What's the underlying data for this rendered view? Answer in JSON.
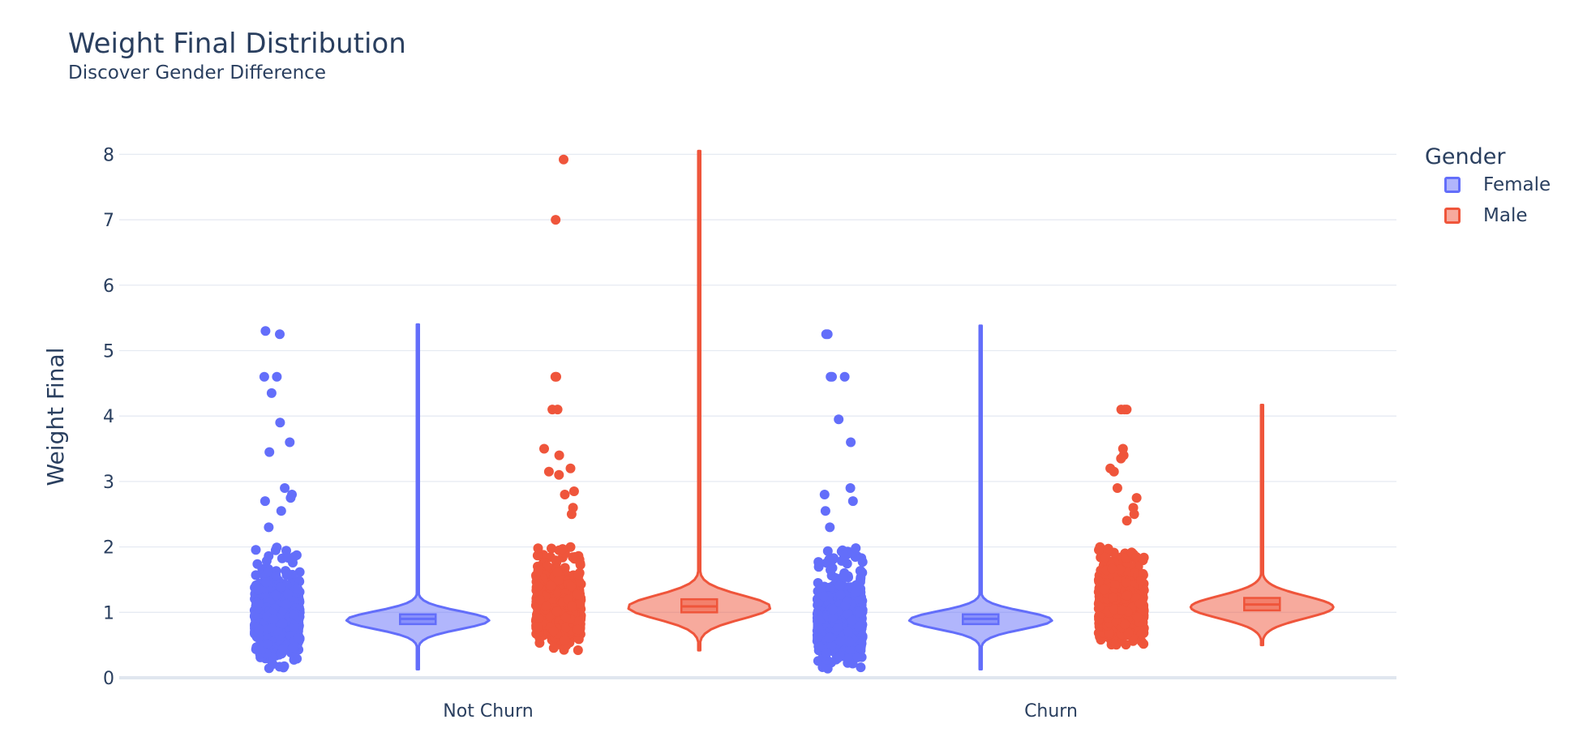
{
  "colors": {
    "female": "#636efa",
    "male": "#ef553b",
    "grid": "#e6eaf2",
    "text": "#2a3f5f"
  },
  "legend": {
    "title": "Gender",
    "items": [
      {
        "name": "Female",
        "color": "#636efa"
      },
      {
        "name": "Male",
        "color": "#ef553b"
      }
    ]
  },
  "chart_data": {
    "type": "violin",
    "title": "Weight Final Distribution",
    "subtitle": "Discover Gender Difference",
    "xlabel": "",
    "ylabel": "Weight Final",
    "categories": [
      "Not Churn",
      "Churn"
    ],
    "ylim": [
      0,
      8.5
    ],
    "yticks": [
      0,
      1,
      2,
      3,
      4,
      5,
      6,
      7,
      8
    ],
    "grid": true,
    "legend_position": "top-right",
    "points": "all",
    "series": [
      {
        "name": "Female",
        "color": "#636efa",
        "groups": [
          {
            "category": "Not Churn",
            "min": 0.13,
            "q1": 0.82,
            "median": 0.9,
            "q3": 0.97,
            "max": 5.4,
            "peak": 0.88,
            "outliers": [
              5.3,
              5.25,
              4.6,
              4.6,
              4.35,
              3.9,
              3.6,
              3.45,
              2.9,
              2.8,
              2.75,
              2.7,
              2.55,
              2.3
            ]
          },
          {
            "category": "Churn",
            "min": 0.13,
            "q1": 0.82,
            "median": 0.9,
            "q3": 0.97,
            "max": 5.38,
            "peak": 0.88,
            "outliers": [
              5.25,
              5.25,
              4.6,
              4.6,
              4.6,
              3.95,
              3.6,
              2.9,
              2.8,
              2.7,
              2.55,
              2.3
            ]
          }
        ]
      },
      {
        "name": "Male",
        "color": "#ef553b",
        "groups": [
          {
            "category": "Not Churn",
            "min": 0.42,
            "q1": 1.0,
            "median": 1.09,
            "q3": 1.2,
            "max": 8.05,
            "peak": 1.08,
            "outliers": [
              7.92,
              7.0,
              4.6,
              4.6,
              4.1,
              4.1,
              3.5,
              3.4,
              3.2,
              3.15,
              3.1,
              2.85,
              2.8,
              2.6,
              2.5
            ]
          },
          {
            "category": "Churn",
            "min": 0.5,
            "q1": 1.03,
            "median": 1.12,
            "q3": 1.22,
            "max": 4.17,
            "peak": 1.08,
            "outliers": [
              4.1,
              4.1,
              4.1,
              3.5,
              3.4,
              3.35,
              3.2,
              3.15,
              2.9,
              2.75,
              2.6,
              2.5,
              2.4
            ]
          }
        ]
      }
    ]
  }
}
